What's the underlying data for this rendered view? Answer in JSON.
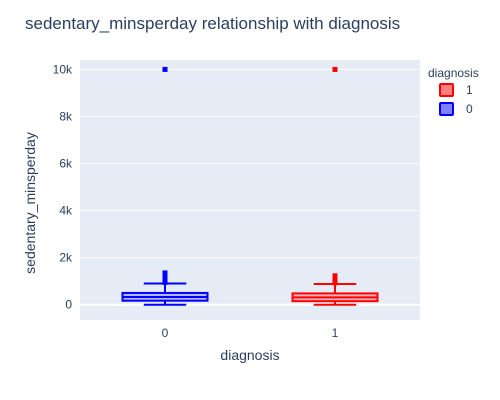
{
  "chart_data": {
    "type": "box",
    "title": "sedentary_minsperday relationship with diagnosis",
    "xlabel": "diagnosis",
    "ylabel": "sedentary_minsperday",
    "categories": [
      "0",
      "1"
    ],
    "ylim": [
      -650,
      10400
    ],
    "yticks": [
      0,
      2000,
      4000,
      6000,
      8000,
      10000
    ],
    "ytick_labels": [
      "0",
      "2k",
      "4k",
      "6k",
      "8k",
      "10k"
    ],
    "grid": true,
    "legend": {
      "title": "diagnosis",
      "placement": "top-right"
    },
    "series": [
      {
        "name": "0",
        "category": "0",
        "color": "#0000ff",
        "fill": "#7f7fff",
        "min": 0,
        "q1": 170,
        "median": 330,
        "q3": 500,
        "max": 900,
        "outliers": [
          950,
          1000,
          1050,
          1100,
          1150,
          1200,
          1250,
          1300,
          1350,
          10000
        ]
      },
      {
        "name": "1",
        "category": "1",
        "color": "#ff0000",
        "fill": "#ff7f7f",
        "min": 0,
        "q1": 150,
        "median": 310,
        "q3": 480,
        "max": 880,
        "outliers": [
          930,
          980,
          1030,
          1080,
          1130,
          1180,
          1230,
          10000
        ]
      }
    ],
    "legend_order": [
      "1",
      "0"
    ]
  }
}
